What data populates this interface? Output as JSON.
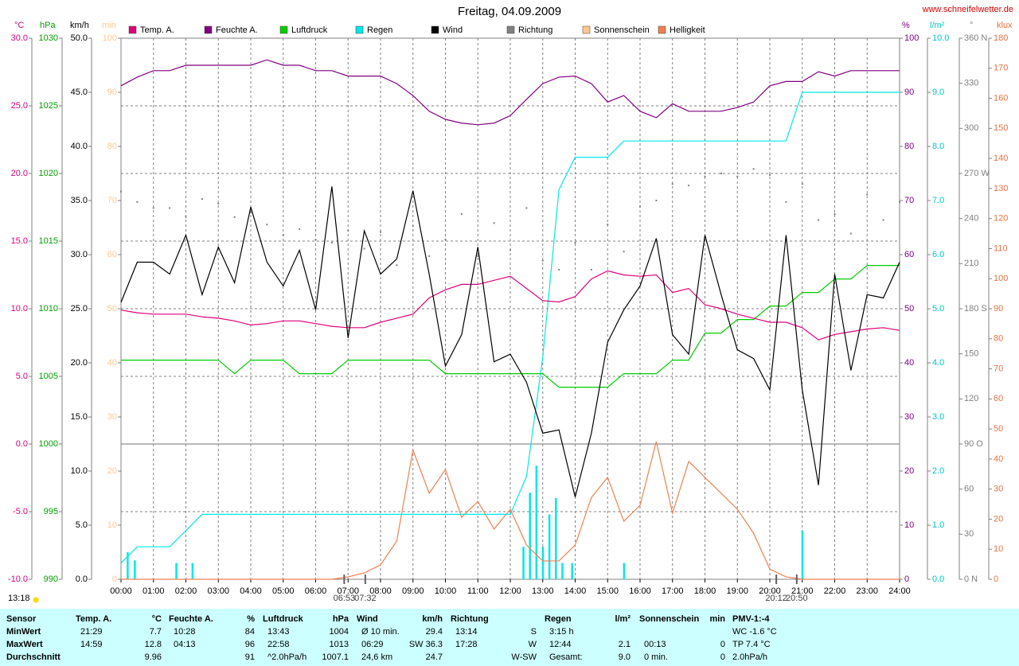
{
  "chart_data": {
    "type": "line",
    "title": "Freitag, 04.09.2009",
    "source": "www.schneifelwetter.de",
    "grid": true,
    "xlim": [
      0,
      24
    ],
    "xticks": [
      {
        "value": 0,
        "label": "00:00"
      },
      {
        "value": 1,
        "label": "01:00"
      },
      {
        "value": 2,
        "label": "02:00"
      },
      {
        "value": 3,
        "label": "03:00"
      },
      {
        "value": 4,
        "label": "04:00"
      },
      {
        "value": 5,
        "label": "05:00"
      },
      {
        "value": 6,
        "label": "06:00"
      },
      {
        "value": 7,
        "label": "07:00"
      },
      {
        "value": 8,
        "label": "08:00"
      },
      {
        "value": 9,
        "label": "09:00"
      },
      {
        "value": 10,
        "label": "10:00"
      },
      {
        "value": 11,
        "label": "11:00"
      },
      {
        "value": 12,
        "label": "12:00"
      },
      {
        "value": 13,
        "label": "13:00"
      },
      {
        "value": 14,
        "label": "14:00"
      },
      {
        "value": 15,
        "label": "15:00"
      },
      {
        "value": 16,
        "label": "16:00"
      },
      {
        "value": 17,
        "label": "17:00"
      },
      {
        "value": 18,
        "label": "18:00"
      },
      {
        "value": 19,
        "label": "19:00"
      },
      {
        "value": 20,
        "label": "20:00"
      },
      {
        "value": 21,
        "label": "21:00"
      },
      {
        "value": 22,
        "label": "22:00"
      },
      {
        "value": 23,
        "label": "23:00"
      },
      {
        "value": 24,
        "label": "24:00"
      }
    ],
    "axes": [
      {
        "label": "°C",
        "side": "left",
        "color": "#e0007a",
        "lim": [
          -10,
          30
        ],
        "ticks": [
          {
            "value": -10,
            "label": "-10.0"
          },
          {
            "value": -5,
            "label": "-5.0"
          },
          {
            "value": 0,
            "label": "0.0"
          },
          {
            "value": 5,
            "label": "5.0"
          },
          {
            "value": 10,
            "label": "10.0"
          },
          {
            "value": 15,
            "label": "15.0"
          },
          {
            "value": 20,
            "label": "20.0"
          },
          {
            "value": 25,
            "label": "25.0"
          },
          {
            "value": 30,
            "label": "30.0"
          }
        ]
      },
      {
        "label": "hPa",
        "side": "left",
        "color": "#00a000",
        "lim": [
          990,
          1030
        ],
        "ticks": [
          990,
          995,
          1000,
          1005,
          1010,
          1015,
          1020,
          1025,
          1030
        ]
      },
      {
        "label": "km/h",
        "side": "left",
        "color": "#000000",
        "lim": [
          0,
          50
        ],
        "ticks": [
          {
            "value": 0,
            "label": "0.0"
          },
          {
            "value": 5,
            "label": "5.0"
          },
          {
            "value": 10,
            "label": "10.0"
          },
          {
            "value": 15,
            "label": "15.0"
          },
          {
            "value": 20,
            "label": "20.0"
          },
          {
            "value": 25,
            "label": "25.0"
          },
          {
            "value": 30,
            "label": "30.0"
          },
          {
            "value": 35,
            "label": "35.0"
          },
          {
            "value": 40,
            "label": "40.0"
          },
          {
            "value": 45,
            "label": "45.0"
          },
          {
            "value": 50,
            "label": "50.0"
          }
        ]
      },
      {
        "label": "min",
        "side": "left",
        "color": "#ffc890",
        "lim": [
          0,
          100
        ],
        "ticks": [
          0,
          10,
          20,
          30,
          40,
          50,
          60,
          70,
          80,
          90,
          100
        ]
      },
      {
        "label": "%",
        "side": "right",
        "color": "#800080",
        "lim": [
          0,
          100
        ],
        "ticks": [
          0,
          10,
          20,
          30,
          40,
          50,
          60,
          70,
          80,
          90,
          100
        ]
      },
      {
        "label": "l/m²",
        "side": "right",
        "color": "#00c8c8",
        "lim": [
          0,
          10
        ],
        "ticks": [
          {
            "value": 0,
            "label": "0.0"
          },
          {
            "value": 1,
            "label": "1.0"
          },
          {
            "value": 2,
            "label": "2.0"
          },
          {
            "value": 3,
            "label": "3.0"
          },
          {
            "value": 4,
            "label": "4.0"
          },
          {
            "value": 5,
            "label": "5.0"
          },
          {
            "value": 6,
            "label": "6.0"
          },
          {
            "value": 7,
            "label": "7.0"
          },
          {
            "value": 8,
            "label": "8.0"
          },
          {
            "value": 9,
            "label": "9.0"
          },
          {
            "value": 10,
            "label": "10.0"
          }
        ]
      },
      {
        "label": "°",
        "side": "right",
        "color": "#808080",
        "lim": [
          0,
          360
        ],
        "ticks": [
          {
            "value": 0,
            "label": "0 N"
          },
          30,
          60,
          {
            "value": 90,
            "label": "90 O"
          },
          120,
          150,
          {
            "value": 180,
            "label": "180 S"
          },
          210,
          240,
          {
            "value": 270,
            "label": "270 W"
          },
          300,
          330,
          {
            "value": 360,
            "label": "360 N"
          }
        ]
      },
      {
        "label": "klux",
        "side": "right",
        "color": "#f07040",
        "lim": [
          0,
          180
        ],
        "ticks": [
          0,
          10,
          20,
          30,
          40,
          50,
          60,
          70,
          80,
          90,
          100,
          110,
          120,
          130,
          140,
          150,
          160,
          170,
          180
        ]
      }
    ],
    "x": [
      0,
      0.5,
      1,
      1.5,
      2,
      2.5,
      3,
      3.5,
      4,
      4.5,
      5,
      5.5,
      6,
      6.5,
      7,
      7.5,
      8,
      8.5,
      9,
      9.5,
      10,
      10.5,
      11,
      11.5,
      12,
      12.5,
      13,
      13.5,
      14,
      14.5,
      15,
      15.5,
      16,
      16.5,
      17,
      17.5,
      18,
      18.5,
      19,
      19.5,
      20,
      20.5,
      21,
      21.5,
      22,
      22.5,
      23,
      23.5,
      24
    ],
    "series": [
      {
        "name": "Temp. A.",
        "color": "#e0007a",
        "axis": "°C",
        "values": [
          9.9,
          9.7,
          9.6,
          9.6,
          9.6,
          9.4,
          9.3,
          9.1,
          8.8,
          8.9,
          9.1,
          9.1,
          8.9,
          8.7,
          8.6,
          8.6,
          9.0,
          9.3,
          9.6,
          10.8,
          11.4,
          11.8,
          11.8,
          12.1,
          12.4,
          11.5,
          10.6,
          10.5,
          10.9,
          12.2,
          12.8,
          12.5,
          12.4,
          12.5,
          11.2,
          11.5,
          10.3,
          10.0,
          9.6,
          9.3,
          9.0,
          9.0,
          8.6,
          7.7,
          8.1,
          8.3,
          8.5,
          8.6,
          8.4
        ]
      },
      {
        "name": "Feuchte A.",
        "color": "#800080",
        "axis": "%",
        "values": [
          91.2,
          92.8,
          94,
          94,
          95,
          95,
          95,
          95,
          95,
          96,
          95,
          95,
          94,
          94,
          93,
          93,
          93,
          91.6,
          89.4,
          86.5,
          85,
          84.3,
          84,
          84.3,
          85.7,
          88.7,
          91.6,
          92.8,
          93,
          91.6,
          88.2,
          89.4,
          86.5,
          85.3,
          87.9,
          86.5,
          86.5,
          86.5,
          87.2,
          88.2,
          91.2,
          92,
          92,
          93.8,
          93,
          94,
          94,
          94,
          94
        ]
      },
      {
        "name": "Luftdruck",
        "color": "#00cc00",
        "axis": "hPa",
        "values": [
          1006.2,
          1006.2,
          1006.2,
          1006.2,
          1006.2,
          1006.2,
          1006.2,
          1005.2,
          1006.2,
          1006.2,
          1006.2,
          1005.2,
          1005.2,
          1005.2,
          1006.2,
          1006.2,
          1006.2,
          1006.2,
          1006.2,
          1006.2,
          1005.2,
          1005.2,
          1005.2,
          1005.2,
          1005.2,
          1005.2,
          1005.2,
          1004.2,
          1004.2,
          1004.2,
          1004.2,
          1005.2,
          1005.2,
          1005.2,
          1006.2,
          1006.2,
          1008.2,
          1008.2,
          1009.2,
          1009.2,
          1010.2,
          1010.2,
          1011.2,
          1011.2,
          1012.2,
          1012.2,
          1013.2,
          1013.2,
          1013.2
        ]
      },
      {
        "name": "Regen",
        "color": "#00e8e8",
        "axis": "l/m²",
        "values": [
          0.3,
          0.6,
          0.6,
          0.6,
          0.9,
          1.2,
          1.2,
          1.2,
          1.2,
          1.2,
          1.2,
          1.2,
          1.2,
          1.2,
          1.2,
          1.2,
          1.2,
          1.2,
          1.2,
          1.2,
          1.2,
          1.2,
          1.2,
          1.2,
          1.2,
          1.9,
          4.1,
          7.2,
          7.8,
          7.8,
          7.8,
          8.1,
          8.1,
          8.1,
          8.1,
          8.1,
          8.1,
          8.1,
          8.1,
          8.1,
          8.1,
          8.1,
          9.0,
          9.0,
          9.0,
          9.0,
          9.0,
          9.0,
          9.0
        ]
      },
      {
        "name": "Wind",
        "color": "#000000",
        "axis": "km/h",
        "values": [
          25.6,
          29.3,
          29.3,
          28.2,
          31.8,
          26.3,
          30.7,
          27.4,
          34.4,
          29.3,
          27.1,
          30.4,
          24.9,
          36.3,
          22.3,
          32.2,
          28.2,
          29.6,
          35.9,
          28.2,
          19.7,
          22.6,
          30.7,
          20.1,
          20.8,
          18.2,
          13.5,
          13.8,
          7.6,
          13.5,
          21.9,
          24.9,
          27.1,
          31.5,
          22.6,
          20.8,
          31.8,
          26.3,
          21.2,
          20.4,
          17.5,
          31.8,
          17.5,
          8.7,
          28.2,
          19.3,
          26.3,
          26.0,
          29.3
        ]
      },
      {
        "name": "Richtung",
        "color": "#808080",
        "axis": "°",
        "type": "scatter",
        "values": [
          258,
          251,
          247,
          247,
          241,
          253,
          250,
          241,
          244,
          236,
          229,
          233,
          226,
          224,
          232,
          220,
          231,
          209,
          235,
          215,
          226,
          243,
          215,
          237,
          219,
          247,
          212,
          206,
          224,
          206,
          236,
          218,
          248,
          252,
          263,
          262,
          268,
          270,
          268,
          273,
          269,
          251,
          263,
          239,
          243,
          230,
          256,
          239,
          251
        ]
      },
      {
        "name": "Sonnenschein",
        "color": "#ffc890",
        "axis": "min"
      },
      {
        "name": "Helligkeit",
        "color": "#f08050",
        "axis": "klux",
        "values": [
          0,
          0,
          0,
          0,
          0,
          0,
          0,
          0,
          0,
          0,
          0,
          0,
          0,
          0,
          0.8,
          2.1,
          4.8,
          12.7,
          43,
          28.6,
          36.5,
          20.6,
          25.9,
          16.7,
          23.3,
          11.4,
          6.1,
          6.1,
          11.4,
          27.2,
          33.9,
          19.3,
          24.6,
          45.8,
          22,
          39.2,
          33.9,
          28.6,
          23.3,
          15.3,
          3.4,
          0.8,
          0,
          0,
          0,
          0,
          0,
          0,
          0
        ]
      }
    ],
    "rain_bars": {
      "axis": "l/m²",
      "color": "#00e8e8",
      "x": [
        0.2,
        0.42,
        1.7,
        2.2,
        12.4,
        12.6,
        12.8,
        13.0,
        13.2,
        13.4,
        13.6,
        13.9,
        15.5,
        21.0
      ],
      "values": [
        0.5,
        0.35,
        0.3,
        0.3,
        0.6,
        1.6,
        2.1,
        0.6,
        1.2,
        1.5,
        0.3,
        0.3,
        0.3,
        0.9
      ]
    },
    "day_length": "13:18",
    "annotations": [
      {
        "text": "06:53",
        "x": 6.88
      },
      {
        "text": "07:32",
        "x": 7.53
      },
      {
        "text": "20:12",
        "x": 20.2
      },
      {
        "text": "20:50",
        "x": 20.83
      }
    ]
  },
  "stats": {
    "columns": [
      {
        "header": "Sensor",
        "cells": [
          {
            "left": "MinWert"
          },
          {
            "left": "MaxWert"
          },
          {
            "left": "Durchschnitt"
          }
        ]
      },
      {
        "header": "Temp. A.",
        "unit": "°C",
        "cells": [
          {
            "left": "21:29",
            "right": "7.7"
          },
          {
            "left": "14:59",
            "right": "12.8"
          },
          {
            "right": "9.96"
          }
        ]
      },
      {
        "header": "Feuchte A.",
        "unit": "%",
        "cells": [
          {
            "left": "10:28",
            "right": "84"
          },
          {
            "left": "04:13",
            "right": "96"
          },
          {
            "right": "91"
          }
        ]
      },
      {
        "header": "Luftdruck",
        "unit": "hPa",
        "cells": [
          {
            "left": "13:43",
            "right": "1004"
          },
          {
            "left": "22:58",
            "right": "1013"
          },
          {
            "left": "^2.0hPa/h",
            "right": "1007.1"
          }
        ]
      },
      {
        "header": "Wind",
        "unit": "km/h",
        "cells": [
          {
            "left": "Ø 10 min.",
            "right": "29.4"
          },
          {
            "left": "06:29",
            "right": "SW 36.3"
          },
          {
            "left": "24,6 km",
            "right": "24.7"
          }
        ]
      },
      {
        "header": "Richtung",
        "cells": [
          {
            "left": "13:14",
            "right": "S"
          },
          {
            "left": "17:28",
            "right": "W"
          },
          {
            "right": "W-SW"
          }
        ]
      },
      {
        "header": "Regen",
        "unit": "l/m²",
        "cells": [
          {
            "left": "3:15 h"
          },
          {
            "left": "12:44",
            "right": "2.1"
          },
          {
            "left": "Gesamt:",
            "right": "9.0"
          }
        ]
      },
      {
        "header": "Sonnenschein",
        "unit": "min",
        "cells": [
          {},
          {
            "left": "00:13",
            "right": "0"
          },
          {
            "left": "0 min.",
            "right": "0"
          }
        ]
      },
      {
        "header": "PMV-1:-4",
        "cells": [
          {
            "left": "WC -1.6 °C"
          },
          {
            "left": "TP 7.4 °C"
          },
          {
            "left": "2.0hPa/h"
          }
        ]
      }
    ]
  }
}
